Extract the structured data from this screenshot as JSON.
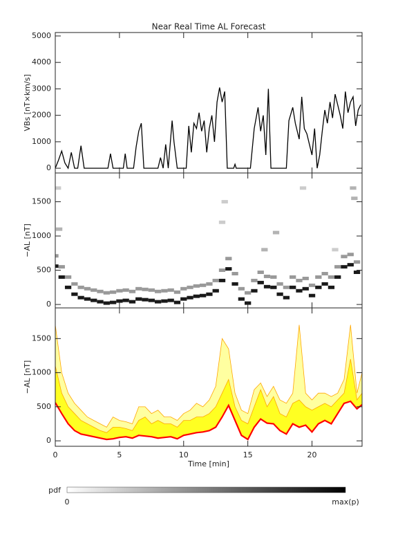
{
  "chart_data": [
    {
      "type": "line",
      "title": "Near Real Time AL Forecast",
      "y_label": "VBs [nT×km/s]",
      "color": "#000000",
      "x": [
        0,
        0.25,
        0.5,
        0.75,
        1.0,
        1.25,
        1.5,
        1.75,
        2.0,
        2.25,
        2.5,
        4.1,
        4.3,
        4.5,
        5.3,
        5.45,
        5.6,
        6.1,
        6.3,
        6.5,
        6.7,
        6.9,
        8.0,
        8.2,
        8.4,
        8.6,
        8.8,
        9.1,
        9.25,
        9.5,
        10.2,
        10.4,
        10.6,
        10.8,
        11.0,
        11.2,
        11.4,
        11.6,
        11.8,
        12.0,
        12.2,
        12.4,
        12.6,
        12.8,
        13.0,
        13.2,
        13.4,
        13.6,
        13.9,
        14.0,
        14.1,
        15.2,
        15.5,
        15.8,
        16.0,
        16.2,
        16.4,
        16.6,
        16.8,
        18.0,
        18.2,
        18.5,
        18.7,
        19.0,
        19.2,
        19.4,
        19.6,
        19.8,
        20.0,
        20.2,
        20.4,
        20.6,
        20.8,
        21.0,
        21.2,
        21.4,
        21.6,
        21.8,
        22.0,
        22.2,
        22.4,
        22.6,
        22.8,
        23.0,
        23.2,
        23.4,
        23.6,
        23.8
      ],
      "values": [
        0,
        300,
        650,
        200,
        0,
        600,
        0,
        0,
        850,
        0,
        0,
        0,
        550,
        0,
        0,
        550,
        0,
        0,
        800,
        1400,
        1700,
        0,
        0,
        400,
        0,
        900,
        0,
        1800,
        1000,
        0,
        0,
        1600,
        600,
        1700,
        1500,
        2100,
        1400,
        1800,
        600,
        1500,
        2000,
        1000,
        2500,
        3050,
        2500,
        2900,
        0,
        0,
        0,
        150,
        0,
        0,
        1500,
        2300,
        1400,
        2000,
        500,
        3000,
        0,
        0,
        1800,
        2300,
        1700,
        1100,
        2700,
        1500,
        1300,
        900,
        500,
        1500,
        0,
        500,
        1400,
        2200,
        1700,
        2500,
        1900,
        2800,
        2400,
        2000,
        1500,
        2900,
        2100,
        2500,
        2700,
        1600,
        2200,
        2400
      ],
      "xlim": [
        0,
        23.9
      ],
      "xticks": [
        0,
        5,
        10,
        15,
        20
      ],
      "ylim": [
        -180,
        5130
      ],
      "yticks": [
        0,
        1000,
        2000,
        3000,
        4000,
        5000
      ]
    },
    {
      "type": "heatmap",
      "y_label": "−AL [nT]",
      "cells": [
        [
          0,
          560,
          0.9
        ],
        [
          0,
          710,
          0.4
        ],
        [
          0.5,
          400,
          0.9
        ],
        [
          0.5,
          550,
          0.4
        ],
        [
          1,
          250,
          0.9
        ],
        [
          1,
          400,
          0.4
        ],
        [
          1.5,
          150,
          0.9
        ],
        [
          1.5,
          300,
          0.4
        ],
        [
          2,
          100,
          0.9
        ],
        [
          2,
          250,
          0.4
        ],
        [
          2.5,
          80,
          0.9
        ],
        [
          2.5,
          230,
          0.4
        ],
        [
          3,
          60,
          0.9
        ],
        [
          3,
          210,
          0.4
        ],
        [
          3.5,
          40,
          0.9
        ],
        [
          3.5,
          190,
          0.4
        ],
        [
          4,
          20,
          0.9
        ],
        [
          4,
          170,
          0.4
        ],
        [
          4.5,
          30,
          0.9
        ],
        [
          4.5,
          180,
          0.4
        ],
        [
          5,
          50,
          0.9
        ],
        [
          5,
          200,
          0.4
        ],
        [
          5.5,
          60,
          0.9
        ],
        [
          5.5,
          210,
          0.4
        ],
        [
          6,
          40,
          0.9
        ],
        [
          6,
          190,
          0.4
        ],
        [
          6.5,
          80,
          0.9
        ],
        [
          6.5,
          230,
          0.4
        ],
        [
          7,
          70,
          0.9
        ],
        [
          7,
          220,
          0.4
        ],
        [
          7.5,
          60,
          0.9
        ],
        [
          7.5,
          210,
          0.4
        ],
        [
          8,
          40,
          0.9
        ],
        [
          8,
          190,
          0.4
        ],
        [
          8.5,
          50,
          0.9
        ],
        [
          8.5,
          200,
          0.4
        ],
        [
          9,
          60,
          0.9
        ],
        [
          9,
          210,
          0.4
        ],
        [
          9.5,
          30,
          0.9
        ],
        [
          9.5,
          180,
          0.4
        ],
        [
          10,
          80,
          0.9
        ],
        [
          10,
          230,
          0.4
        ],
        [
          10.5,
          100,
          0.9
        ],
        [
          10.5,
          250,
          0.4
        ],
        [
          11,
          120,
          0.9
        ],
        [
          11,
          270,
          0.4
        ],
        [
          11.5,
          130,
          0.9
        ],
        [
          11.5,
          280,
          0.4
        ],
        [
          12,
          150,
          0.9
        ],
        [
          12,
          300,
          0.4
        ],
        [
          12.5,
          200,
          0.9
        ],
        [
          12.5,
          350,
          0.4
        ],
        [
          13,
          350,
          0.9
        ],
        [
          13,
          500,
          0.4
        ],
        [
          13.5,
          520,
          0.9
        ],
        [
          13.5,
          670,
          0.4
        ],
        [
          14,
          300,
          0.9
        ],
        [
          14,
          450,
          0.4
        ],
        [
          14.5,
          80,
          0.9
        ],
        [
          14.5,
          230,
          0.4
        ],
        [
          15,
          20,
          0.9
        ],
        [
          15,
          170,
          0.4
        ],
        [
          15.5,
          200,
          0.9
        ],
        [
          15.5,
          350,
          0.4
        ],
        [
          16,
          320,
          0.9
        ],
        [
          16,
          470,
          0.4
        ],
        [
          16.5,
          260,
          0.9
        ],
        [
          16.5,
          410,
          0.4
        ],
        [
          17,
          250,
          0.9
        ],
        [
          17,
          400,
          0.4
        ],
        [
          17.5,
          150,
          0.9
        ],
        [
          17.5,
          300,
          0.4
        ],
        [
          18,
          100,
          0.9
        ],
        [
          18,
          250,
          0.4
        ],
        [
          18.5,
          250,
          0.9
        ],
        [
          18.5,
          400,
          0.4
        ],
        [
          19,
          200,
          0.9
        ],
        [
          19,
          350,
          0.4
        ],
        [
          19.5,
          230,
          0.9
        ],
        [
          19.5,
          380,
          0.4
        ],
        [
          20,
          130,
          0.9
        ],
        [
          20,
          280,
          0.4
        ],
        [
          20.5,
          250,
          0.9
        ],
        [
          20.5,
          400,
          0.4
        ],
        [
          21,
          300,
          0.9
        ],
        [
          21,
          450,
          0.4
        ],
        [
          21.5,
          250,
          0.9
        ],
        [
          21.5,
          400,
          0.4
        ],
        [
          22,
          400,
          0.9
        ],
        [
          22,
          550,
          0.4
        ],
        [
          22.5,
          550,
          0.9
        ],
        [
          22.5,
          700,
          0.4
        ],
        [
          23,
          580,
          0.9
        ],
        [
          23,
          730,
          0.4
        ],
        [
          23.5,
          470,
          0.9
        ],
        [
          23.5,
          620,
          0.4
        ],
        [
          0.2,
          1700,
          0.2
        ],
        [
          0.3,
          1100,
          0.3
        ],
        [
          13.2,
          1500,
          0.2
        ],
        [
          13.0,
          1200,
          0.2
        ],
        [
          19.3,
          1700,
          0.2
        ],
        [
          23.2,
          1700,
          0.3
        ],
        [
          23.3,
          1550,
          0.3
        ],
        [
          16.3,
          800,
          0.3
        ],
        [
          17.2,
          1050,
          0.3
        ],
        [
          21.8,
          800,
          0.2
        ]
      ],
      "colorbar": {
        "label": "pdf",
        "min_label": "0",
        "max_label": "max(p)"
      },
      "xlim": [
        0,
        23.9
      ],
      "xticks": [
        0,
        5,
        10,
        15,
        20
      ],
      "ylim": [
        -50,
        1920
      ],
      "yticks": [
        0,
        500,
        1000,
        1500
      ]
    },
    {
      "type": "area",
      "y_label": "−AL [nT]",
      "x_label": "Time [min]",
      "x": [
        0,
        0.5,
        1,
        1.5,
        2,
        2.5,
        3,
        3.5,
        4,
        4.5,
        5,
        5.5,
        6,
        6.5,
        7,
        7.5,
        8,
        8.5,
        9,
        9.5,
        10,
        10.5,
        11,
        11.5,
        12,
        12.5,
        13,
        13.5,
        14,
        14.5,
        15,
        15.5,
        16,
        16.5,
        17,
        17.5,
        18,
        18.5,
        19,
        19.5,
        20,
        20.5,
        21,
        21.5,
        22,
        22.5,
        23,
        23.5,
        23.9
      ],
      "series": [
        {
          "color": "#ffa500",
          "fill": "#ffffa0",
          "values": [
            1700,
            1000,
            700,
            550,
            450,
            350,
            300,
            250,
            200,
            350,
            300,
            280,
            250,
            500,
            500,
            400,
            450,
            350,
            350,
            300,
            400,
            450,
            550,
            500,
            600,
            800,
            1500,
            1350,
            700,
            450,
            400,
            750,
            850,
            650,
            800,
            600,
            550,
            700,
            1700,
            700,
            600,
            700,
            700,
            650,
            700,
            900,
            1700,
            700,
            1000
          ]
        },
        {
          "color": "#ffa500",
          "fill": "#ffff22",
          "values": [
            1100,
            700,
            500,
            400,
            300,
            250,
            200,
            150,
            120,
            200,
            200,
            180,
            150,
            300,
            350,
            250,
            300,
            250,
            250,
            200,
            300,
            300,
            350,
            350,
            400,
            500,
            700,
            900,
            500,
            300,
            250,
            500,
            750,
            500,
            650,
            400,
            350,
            550,
            600,
            500,
            450,
            500,
            550,
            500,
            600,
            700,
            1200,
            600,
            700
          ]
        },
        {
          "color": "#ff0000",
          "values": [
            560,
            400,
            250,
            150,
            100,
            80,
            60,
            40,
            20,
            30,
            50,
            60,
            40,
            80,
            70,
            60,
            40,
            50,
            60,
            30,
            80,
            100,
            120,
            130,
            150,
            200,
            350,
            520,
            300,
            80,
            20,
            200,
            320,
            260,
            250,
            150,
            100,
            250,
            200,
            230,
            130,
            250,
            300,
            250,
            400,
            550,
            580,
            470,
            530
          ]
        }
      ],
      "xlim": [
        0,
        23.9
      ],
      "xticks": [
        0,
        5,
        10,
        15,
        20
      ],
      "ylim": [
        -80,
        1950
      ],
      "yticks": [
        0,
        500,
        1000,
        1500
      ]
    }
  ]
}
